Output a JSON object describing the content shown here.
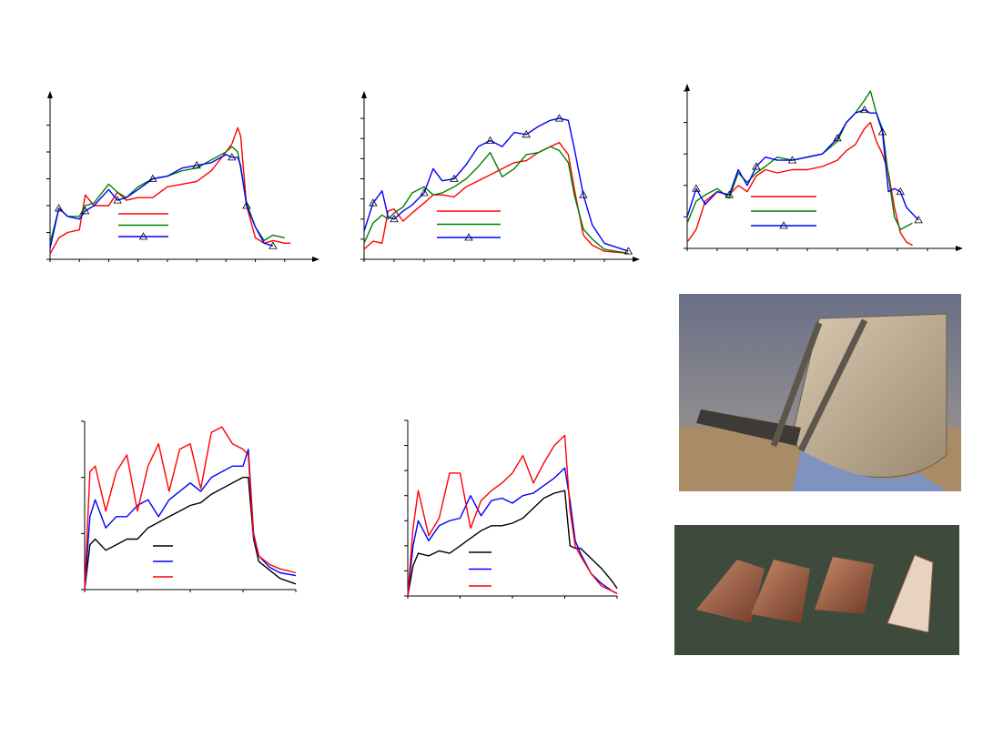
{
  "chart_data": [
    {
      "type": "line",
      "xlim": [
        0,
        9
      ],
      "ylim": [
        0,
        6
      ],
      "xticks": [
        0,
        1,
        2,
        3,
        4,
        5,
        6,
        7,
        8
      ],
      "yticks": [
        0,
        1,
        2,
        3,
        4,
        5
      ],
      "legend": true,
      "x": [
        0,
        0.3,
        0.6,
        1,
        1.2,
        1.5,
        2,
        2.3,
        2.6,
        3,
        3.5,
        4,
        4.5,
        5,
        5.5,
        6,
        6.2,
        6.4,
        6.5,
        6.7,
        7,
        7.3,
        7.6,
        8,
        8.2
      ],
      "series": [
        {
          "color": "#ff0000",
          "values": [
            0.2,
            0.8,
            1,
            1.1,
            2.4,
            2,
            2,
            2.5,
            2.2,
            2.3,
            2.3,
            2.7,
            2.8,
            2.9,
            3.3,
            4,
            4.3,
            4.9,
            4.6,
            2,
            0.8,
            0.6,
            0.7,
            0.6,
            0.6
          ]
        },
        {
          "color": "#008000",
          "values": [
            0.6,
            1.9,
            1.6,
            1.6,
            2,
            2.1,
            2.8,
            2.5,
            2.3,
            2.7,
            3,
            3.1,
            3.3,
            3.4,
            3.7,
            4,
            4.2,
            4,
            3.4,
            2.1,
            1.2,
            0.7,
            0.9,
            0.8,
            null
          ]
        },
        {
          "color": "#0000ff",
          "marker": "triangle",
          "values": [
            0.4,
            1.9,
            1.6,
            1.5,
            1.8,
            2,
            2.6,
            2.2,
            2.3,
            2.6,
            3,
            3.1,
            3.4,
            3.5,
            3.6,
            3.9,
            3.8,
            3.8,
            3.5,
            2,
            1.2,
            0.6,
            0.5,
            null,
            null
          ]
        }
      ]
    },
    {
      "type": "line",
      "xlim": [
        0,
        9
      ],
      "ylim": [
        0,
        8
      ],
      "xticks": [
        0,
        1,
        2,
        3,
        4,
        5,
        6,
        7,
        8
      ],
      "yticks": [
        0,
        1,
        2,
        3,
        4,
        5,
        6,
        7
      ],
      "legend": true,
      "x": [
        0,
        0.3,
        0.6,
        0.8,
        1,
        1.3,
        1.6,
        2,
        2.3,
        2.6,
        3,
        3.4,
        3.8,
        4.2,
        4.6,
        5,
        5.4,
        5.8,
        6.2,
        6.5,
        6.8,
        7,
        7.3,
        7.6,
        8,
        8.8
      ],
      "series": [
        {
          "color": "#ff0000",
          "values": [
            0.5,
            0.9,
            0.8,
            2.4,
            2.5,
            1.9,
            2.3,
            2.8,
            3.2,
            3.2,
            3.1,
            3.6,
            3.9,
            4.2,
            4.5,
            4.8,
            4.9,
            5.3,
            5.6,
            5.8,
            5.2,
            3.5,
            1.2,
            0.7,
            0.4,
            0.3
          ]
        },
        {
          "color": "#008000",
          "values": [
            0.8,
            1.8,
            2.2,
            2,
            2.3,
            2.6,
            3.3,
            3.6,
            3.2,
            3.3,
            3.6,
            4,
            4.6,
            5.3,
            4.1,
            4.5,
            5.2,
            5.3,
            5.6,
            5.4,
            4.8,
            3.2,
            1.5,
            1,
            0.5,
            0.3
          ]
        },
        {
          "color": "#0000ff",
          "marker": "triangle",
          "values": [
            1.4,
            2.8,
            3.4,
            2.1,
            2,
            2.4,
            2.7,
            3.3,
            4.5,
            3.9,
            4,
            4.7,
            5.6,
            5.9,
            5.6,
            6.3,
            6.2,
            6.6,
            6.9,
            7,
            6.9,
            5.5,
            3.2,
            1.7,
            0.8,
            0.4
          ]
        }
      ]
    },
    {
      "type": "line",
      "xlim": [
        0,
        9
      ],
      "ylim": [
        0,
        5
      ],
      "xticks": [
        0,
        1,
        2,
        3,
        4,
        5,
        6,
        7,
        8
      ],
      "yticks": [
        0,
        1,
        2,
        3,
        4,
        5
      ],
      "legend": true,
      "x": [
        0,
        0.3,
        0.6,
        1,
        1.4,
        1.7,
        2,
        2.3,
        2.6,
        3,
        3.5,
        4,
        4.5,
        5,
        5.3,
        5.6,
        5.9,
        6.1,
        6.3,
        6.5,
        6.7,
        6.9,
        7.1,
        7.3,
        7.5,
        7.7,
        7.8
      ],
      "series": [
        {
          "color": "#ff0000",
          "values": [
            0.2,
            0.6,
            1.5,
            1.8,
            1.7,
            2,
            1.8,
            2.3,
            2.5,
            2.4,
            2.5,
            2.5,
            2.6,
            2.8,
            3.1,
            3.3,
            3.8,
            4,
            3.4,
            3,
            2.4,
            1.3,
            0.5,
            0.2,
            0.1,
            null,
            null
          ]
        },
        {
          "color": "#008000",
          "values": [
            0.8,
            1.5,
            1.7,
            1.9,
            1.6,
            2.4,
            2.1,
            2.4,
            2.6,
            2.9,
            2.8,
            2.9,
            3,
            3.4,
            4,
            4.3,
            4.7,
            5,
            4.3,
            3.8,
            2.3,
            1,
            0.6,
            0.7,
            0.8,
            null,
            null
          ]
        },
        {
          "color": "#0000ff",
          "marker": "triangle",
          "values": [
            1,
            1.9,
            1.4,
            1.8,
            1.7,
            2.5,
            2,
            2.6,
            2.9,
            2.8,
            2.8,
            2.9,
            3,
            3.5,
            4,
            4.3,
            4.4,
            4.3,
            4.3,
            3.7,
            1.8,
            1.9,
            1.8,
            1.3,
            1.1,
            0.9,
            null
          ]
        }
      ]
    },
    {
      "type": "line",
      "xlim": [
        0,
        4
      ],
      "ylim": [
        0,
        3
      ],
      "xticks": [
        0,
        1,
        2,
        3,
        4
      ],
      "yticks": [
        0,
        1,
        2,
        3
      ],
      "legend": true,
      "x": [
        0,
        0.1,
        0.2,
        0.4,
        0.6,
        0.8,
        1,
        1.2,
        1.4,
        1.6,
        1.8,
        2,
        2.2,
        2.4,
        2.6,
        2.8,
        3,
        3.1,
        3.2,
        3.3,
        3.5,
        3.7,
        4
      ],
      "series": [
        {
          "color": "#000000",
          "values": [
            0,
            0.8,
            0.9,
            0.7,
            0.8,
            0.9,
            0.9,
            1.1,
            1.2,
            1.3,
            1.4,
            1.5,
            1.55,
            1.7,
            1.8,
            1.9,
            2,
            2,
            0.9,
            0.5,
            0.35,
            0.2,
            0.1
          ]
        },
        {
          "color": "#0000ff",
          "values": [
            0,
            1.3,
            1.6,
            1.1,
            1.3,
            1.3,
            1.5,
            1.6,
            1.3,
            1.6,
            1.75,
            1.9,
            1.75,
            2,
            2.1,
            2.2,
            2.2,
            2.5,
            1,
            0.6,
            0.4,
            0.3,
            0.25
          ]
        },
        {
          "color": "#ff0000",
          "values": [
            0,
            2.1,
            2.2,
            1.4,
            2.1,
            2.4,
            1.4,
            2.2,
            2.6,
            1.75,
            2.5,
            2.6,
            1.8,
            2.8,
            2.9,
            2.6,
            2.5,
            2.4,
            0.95,
            0.6,
            0.45,
            0.37,
            0.3
          ]
        }
      ]
    },
    {
      "type": "line",
      "xlim": [
        0,
        4
      ],
      "ylim": [
        0,
        7
      ],
      "xticks": [
        0,
        1,
        2,
        3,
        4
      ],
      "yticks": [
        0,
        1,
        2,
        3,
        4,
        5,
        6,
        7
      ],
      "legend": true,
      "x": [
        0,
        0.1,
        0.2,
        0.4,
        0.6,
        0.8,
        1,
        1.2,
        1.4,
        1.6,
        1.8,
        2,
        2.2,
        2.4,
        2.6,
        2.8,
        3,
        3.1,
        3.2,
        3.3,
        3.5,
        3.7,
        3.9,
        4
      ],
      "series": [
        {
          "color": "#000000",
          "values": [
            0,
            1.2,
            1.7,
            1.6,
            1.8,
            1.7,
            2,
            2.3,
            2.6,
            2.8,
            2.8,
            2.9,
            3.1,
            3.5,
            3.9,
            4.1,
            4.2,
            2,
            1.9,
            1.9,
            1.5,
            1.1,
            0.6,
            0.3
          ]
        },
        {
          "color": "#0000ff",
          "values": [
            0,
            2,
            3,
            2.2,
            2.8,
            3,
            3.1,
            4,
            3.2,
            3.8,
            3.9,
            3.7,
            4,
            4.1,
            4.4,
            4.7,
            5.1,
            3.8,
            2.2,
            1.7,
            0.9,
            0.5,
            0.2,
            0.1
          ]
        },
        {
          "color": "#ff0000",
          "values": [
            0,
            2.7,
            4.2,
            2.4,
            3.1,
            4.9,
            4.9,
            2.7,
            3.8,
            4.2,
            4.5,
            4.9,
            5.6,
            4.5,
            5.3,
            6,
            6.4,
            3.4,
            2,
            1.6,
            0.9,
            0.4,
            0.2,
            0.1
          ]
        }
      ]
    }
  ]
}
